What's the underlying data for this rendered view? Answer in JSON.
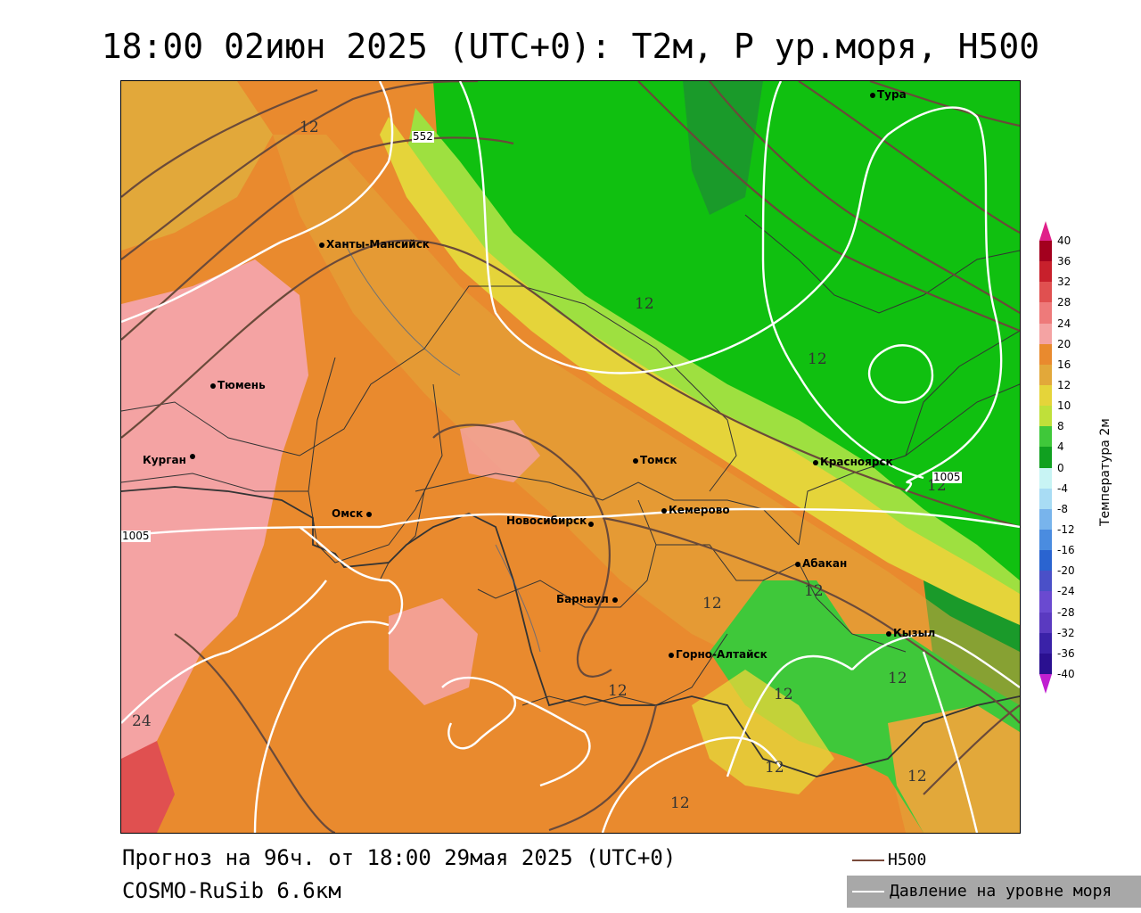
{
  "title": "18:00 02июн 2025 (UTC+0): T2м, P ур.моря, H500",
  "footer": {
    "forecast": "Прогноз на 96ч. от 18:00 29мая 2025 (UTC+0)",
    "model": "COSMO-RuSib 6.6км"
  },
  "legend": {
    "h500_label": "H500",
    "h500_color": "#7a4a3a",
    "pressure_label": "Давление на уровне моря",
    "pressure_color": "#ffffff"
  },
  "colorbar": {
    "title": "Температура 2м",
    "ticks": [
      "40",
      "36",
      "32",
      "28",
      "24",
      "20",
      "16",
      "12",
      "10",
      "8",
      "4",
      "0",
      "-4",
      "-8",
      "-12",
      "-16",
      "-20",
      "-24",
      "-28",
      "-32",
      "-36",
      "-40"
    ],
    "colors": [
      "#a3001e",
      "#c8202c",
      "#e05050",
      "#ee7a7a",
      "#f4a3a3",
      "#e98a2e",
      "#e2a83a",
      "#e5d43a",
      "#bfe03a",
      "#3fc83a",
      "#10a020",
      "#c8f4f4",
      "#a8dcf4",
      "#78b4ec",
      "#4a8ce0",
      "#2a64d0",
      "#4a50c8",
      "#6a4ad0",
      "#5a3ac0",
      "#3a22a8",
      "#2a1090"
    ]
  },
  "cities": [
    {
      "name": "Тура",
      "color": "#000000"
    },
    {
      "name": "Ханты-Мансийск"
    },
    {
      "name": "Тюмень"
    },
    {
      "name": "Курган"
    },
    {
      "name": "Омск"
    },
    {
      "name": "Томск"
    },
    {
      "name": "Красноярск"
    },
    {
      "name": "Кемерово"
    },
    {
      "name": "Новосибирск"
    },
    {
      "name": "Абакан"
    },
    {
      "name": "Барнаул"
    },
    {
      "name": "Кызыл"
    },
    {
      "name": "Горно-Алтайск"
    }
  ],
  "contour_labels": {
    "iso_12": "12",
    "iso_24": "24",
    "h500_552": "552",
    "p_1005": "1005"
  }
}
